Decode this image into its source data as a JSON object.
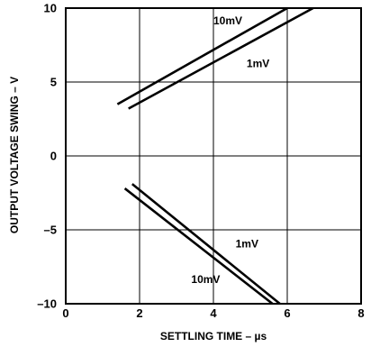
{
  "chart_data": {
    "type": "line",
    "title": "",
    "xlabel": "SETTLING TIME – µs",
    "ylabel": "OUTPUT VOLTAGE SWING – V",
    "xlim": [
      0,
      8
    ],
    "ylim": [
      -10,
      10
    ],
    "xticks": [
      0,
      2,
      4,
      6,
      8
    ],
    "yticks": [
      -10,
      -5,
      0,
      5,
      10
    ],
    "xtick_labels": [
      "0",
      "2",
      "4",
      "6",
      "8"
    ],
    "ytick_labels": [
      "–10",
      "–5",
      "0",
      "5",
      "10"
    ],
    "grid": true,
    "legend": "none",
    "series": [
      {
        "name": "10mV",
        "points": [
          [
            1.4,
            3.5
          ],
          [
            6.0,
            10.0
          ]
        ]
      },
      {
        "name": "1mV",
        "points": [
          [
            1.7,
            3.2
          ],
          [
            6.7,
            10.0
          ]
        ]
      },
      {
        "name": "1mV",
        "points": [
          [
            1.8,
            -1.9
          ],
          [
            5.8,
            -10.0
          ]
        ]
      },
      {
        "name": "10mV",
        "points": [
          [
            1.6,
            -2.2
          ],
          [
            5.6,
            -10.0
          ]
        ]
      }
    ],
    "annotations": [
      {
        "text": "10mV",
        "x": 4.0,
        "y": 8.9
      },
      {
        "text": "1mV",
        "x": 4.9,
        "y": 6.0
      },
      {
        "text": "1mV",
        "x": 4.6,
        "y": -6.2
      },
      {
        "text": "10mV",
        "x": 3.4,
        "y": -8.6
      }
    ]
  }
}
